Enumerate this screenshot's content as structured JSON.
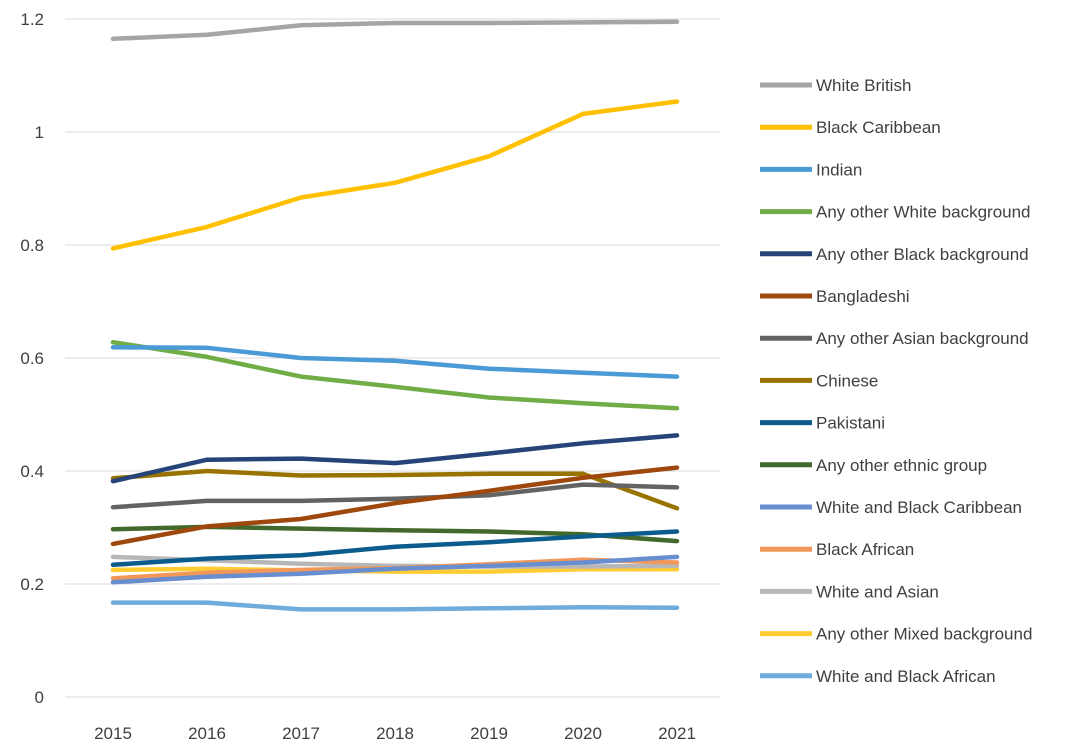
{
  "chart_data": {
    "type": "line",
    "title": "",
    "xlabel": "",
    "ylabel": "",
    "categories": [
      "2015",
      "2016",
      "2017",
      "2018",
      "2019",
      "2020",
      "2021"
    ],
    "ylim": [
      0,
      1.2
    ],
    "yticks": [
      "0",
      "0.2",
      "0.4",
      "0.6",
      "0.8",
      "1",
      "1.2"
    ],
    "grid": "horizontal",
    "legend_position": "right",
    "series": [
      {
        "name": "White British",
        "color": "#A5A5A5",
        "values": [
          1.165,
          1.172,
          1.189,
          1.193,
          1.193,
          1.194,
          1.195
        ]
      },
      {
        "name": "Black Caribbean",
        "color": "#FFC000",
        "values": [
          0.794,
          0.832,
          0.884,
          0.91,
          0.957,
          1.032,
          1.054
        ]
      },
      {
        "name": "Indian",
        "color": "#4A9BD5",
        "values": [
          0.619,
          0.618,
          0.6,
          0.595,
          0.581,
          0.574,
          0.567
        ]
      },
      {
        "name": "Any other White background",
        "color": "#70AD47",
        "values": [
          0.628,
          0.602,
          0.567,
          0.549,
          0.53,
          0.52,
          0.511
        ]
      },
      {
        "name": "Any other Black background",
        "color": "#264478",
        "values": [
          0.382,
          0.42,
          0.422,
          0.414,
          0.431,
          0.449,
          0.463
        ]
      },
      {
        "name": "Bangladeshi",
        "color": "#9E480E",
        "values": [
          0.271,
          0.302,
          0.315,
          0.343,
          0.365,
          0.388,
          0.406
        ]
      },
      {
        "name": "Any other Asian background",
        "color": "#636363",
        "values": [
          0.336,
          0.347,
          0.347,
          0.351,
          0.357,
          0.376,
          0.371
        ]
      },
      {
        "name": "Chinese",
        "color": "#997300",
        "values": [
          0.387,
          0.4,
          0.392,
          0.393,
          0.395,
          0.395,
          0.334
        ]
      },
      {
        "name": "Pakistani",
        "color": "#0B5C8C",
        "values": [
          0.234,
          0.245,
          0.251,
          0.266,
          0.274,
          0.284,
          0.293
        ]
      },
      {
        "name": "Any other ethnic group",
        "color": "#43682B",
        "values": [
          0.297,
          0.301,
          0.298,
          0.295,
          0.293,
          0.288,
          0.276
        ]
      },
      {
        "name": "White and Black Caribbean",
        "color": "#698ED0",
        "values": [
          0.203,
          0.213,
          0.218,
          0.227,
          0.232,
          0.238,
          0.248
        ]
      },
      {
        "name": "Black African",
        "color": "#F1975A",
        "values": [
          0.21,
          0.22,
          0.225,
          0.228,
          0.235,
          0.243,
          0.238
        ]
      },
      {
        "name": "White and Asian",
        "color": "#B7B7B7",
        "values": [
          0.248,
          0.242,
          0.236,
          0.232,
          0.231,
          0.231,
          0.232
        ]
      },
      {
        "name": "Any other Mixed background",
        "color": "#FFCD33",
        "values": [
          0.225,
          0.227,
          0.224,
          0.222,
          0.222,
          0.226,
          0.226
        ]
      },
      {
        "name": "White and Black African",
        "color": "#6FACDC",
        "values": [
          0.167,
          0.167,
          0.155,
          0.155,
          0.157,
          0.159,
          0.158
        ]
      }
    ]
  }
}
